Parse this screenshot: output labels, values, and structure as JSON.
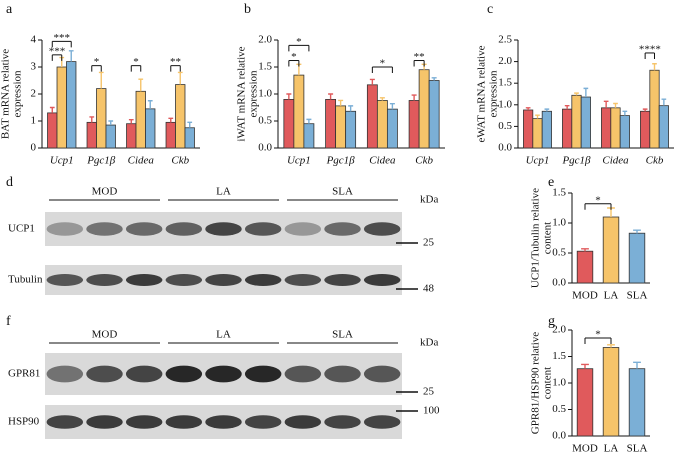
{
  "chart_data": [
    {
      "type": "bar",
      "panel_label": "a",
      "ylabel": [
        "BAT mRNA relative",
        "expression"
      ],
      "italic_categories": true,
      "categories": [
        "Ucp1",
        "Pgc1β",
        "Cidea",
        "Ckb"
      ],
      "series": [
        {
          "color": "#e05a5c",
          "values": [
            1.3,
            0.95,
            0.9,
            0.95
          ],
          "errors": [
            0.2,
            0.2,
            0.15,
            0.15
          ]
        },
        {
          "color": "#f6c46a",
          "values": [
            3.0,
            2.2,
            2.1,
            2.35
          ],
          "errors": [
            0.35,
            0.6,
            0.45,
            0.45
          ]
        },
        {
          "color": "#7bafd6",
          "values": [
            3.2,
            0.85,
            1.45,
            0.75
          ],
          "errors": [
            0.4,
            0.15,
            0.3,
            0.2
          ]
        }
      ],
      "ylim": [
        0,
        4
      ],
      "yticks": [
        0,
        1,
        2,
        3,
        4
      ],
      "annotations": [
        {
          "text": "***",
          "from": [
            0,
            0
          ],
          "to": [
            0,
            1
          ],
          "y": 3.45
        },
        {
          "text": "***",
          "from": [
            0,
            0
          ],
          "to": [
            0,
            2
          ],
          "y": 3.95
        },
        {
          "text": "*",
          "from": [
            1,
            0
          ],
          "to": [
            1,
            1
          ],
          "y": 3.05
        },
        {
          "text": "*",
          "from": [
            2,
            0
          ],
          "to": [
            2,
            1
          ],
          "y": 3.05
        },
        {
          "text": "**",
          "from": [
            3,
            0
          ],
          "to": [
            3,
            1
          ],
          "y": 3.05
        }
      ]
    },
    {
      "type": "bar",
      "panel_label": "b",
      "ylabel": [
        "iWAT mRNA relative",
        "expression"
      ],
      "italic_categories": true,
      "categories": [
        "Ucp1",
        "Pgc1β",
        "Cidea",
        "Ckb"
      ],
      "series": [
        {
          "color": "#e05a5c",
          "values": [
            0.9,
            0.9,
            1.17,
            0.88
          ],
          "errors": [
            0.1,
            0.1,
            0.1,
            0.1
          ]
        },
        {
          "color": "#f6c46a",
          "values": [
            1.35,
            0.78,
            0.88,
            1.45
          ],
          "errors": [
            0.2,
            0.1,
            0.05,
            0.1
          ]
        },
        {
          "color": "#7bafd6",
          "values": [
            0.45,
            0.68,
            0.72,
            1.25
          ],
          "errors": [
            0.08,
            0.1,
            0.1,
            0.05
          ]
        }
      ],
      "ylim": [
        0,
        2
      ],
      "yticks": [
        {
          "value": 0,
          "label": "0.0"
        },
        0.5,
        {
          "value": 1,
          "label": "1.0"
        },
        1.5,
        {
          "value": 2,
          "label": "2.0"
        }
      ],
      "annotations": [
        {
          "text": "*",
          "from": [
            0,
            0
          ],
          "to": [
            0,
            1
          ],
          "y": 1.62
        },
        {
          "text": "*",
          "from": [
            0,
            0
          ],
          "to": [
            0,
            2
          ],
          "y": 1.9
        },
        {
          "text": "*",
          "from": [
            2,
            0
          ],
          "to": [
            2,
            2
          ],
          "y": 1.5
        },
        {
          "text": "**",
          "from": [
            3,
            0
          ],
          "to": [
            3,
            1
          ],
          "y": 1.62
        }
      ]
    },
    {
      "type": "bar",
      "panel_label": "c",
      "ylabel": [
        "eWAT mRNA relative",
        "expression"
      ],
      "italic_categories": true,
      "categories": [
        "Ucp1",
        "Pgc1β",
        "Cidea",
        "Ckb"
      ],
      "series": [
        {
          "color": "#e05a5c",
          "values": [
            0.88,
            0.9,
            0.93,
            0.85
          ],
          "errors": [
            0.05,
            0.08,
            0.15,
            0.05
          ]
        },
        {
          "color": "#f6c46a",
          "values": [
            0.68,
            1.22,
            0.93,
            1.8
          ],
          "errors": [
            0.08,
            0.05,
            0.1,
            0.15
          ]
        },
        {
          "color": "#7bafd6",
          "values": [
            0.85,
            1.18,
            0.75,
            0.98
          ],
          "errors": [
            0.05,
            0.2,
            0.1,
            0.15
          ]
        }
      ],
      "ylim": [
        0,
        2.5
      ],
      "yticks": [
        {
          "value": 0,
          "label": "0.0"
        },
        0.5,
        {
          "value": 1,
          "label": "1.0"
        },
        1.5,
        {
          "value": 2,
          "label": "2.0"
        },
        2.5
      ],
      "annotations": [
        {
          "text": "****",
          "from": [
            3,
            0
          ],
          "to": [
            3,
            1
          ],
          "y": 2.2
        }
      ]
    },
    {
      "type": "bar",
      "panel_label": "e",
      "ylabel": [
        "UCP1/Tubulin relative",
        "content"
      ],
      "categories": [
        "MOD",
        "LA",
        "SLA"
      ],
      "values": [
        0.53,
        1.1,
        0.83
      ],
      "errors": [
        0.04,
        0.15,
        0.05
      ],
      "colors": [
        "#e05a5c",
        "#f6c46a",
        "#7bafd6"
      ],
      "ylim": [
        0,
        1.5
      ],
      "yticks": [
        {
          "value": 0,
          "label": "0.0"
        },
        0.5,
        {
          "value": 1,
          "label": "1.0"
        },
        1.5
      ],
      "annotations": [
        {
          "text": "*",
          "from": [
            0,
            0
          ],
          "to": [
            1,
            0
          ],
          "y": 1.32
        }
      ]
    },
    {
      "type": "bar",
      "panel_label": "g",
      "ylabel": [
        "GPR81/HSP90 relative",
        "content"
      ],
      "categories": [
        "MOD",
        "LA",
        "SLA"
      ],
      "values": [
        1.27,
        1.67,
        1.27
      ],
      "errors": [
        0.08,
        0.05,
        0.12
      ],
      "colors": [
        "#e05a5c",
        "#f6c46a",
        "#7bafd6"
      ],
      "ylim": [
        0,
        2
      ],
      "yticks": [
        {
          "value": 0,
          "label": "0.0"
        },
        0.5,
        {
          "value": 1,
          "label": "1.0"
        },
        1.5,
        {
          "value": 2,
          "label": "2.0"
        }
      ],
      "annotations": [
        {
          "text": "*",
          "from": [
            0,
            0
          ],
          "to": [
            1,
            0
          ],
          "y": 1.85
        }
      ]
    }
  ],
  "blots": [
    {
      "panel_label": "d",
      "groups": [
        "MOD",
        "LA",
        "SLA"
      ],
      "unit": "kDa",
      "rows": [
        {
          "label": "UCP1",
          "marker": 25
        },
        {
          "label": "Tubulin",
          "marker": 48
        }
      ]
    },
    {
      "panel_label": "f",
      "groups": [
        "MOD",
        "LA",
        "SLA"
      ],
      "unit": "kDa",
      "rows": [
        {
          "label": "GPR81",
          "marker": 25
        },
        {
          "label": "HSP90",
          "marker": 100
        }
      ]
    }
  ]
}
